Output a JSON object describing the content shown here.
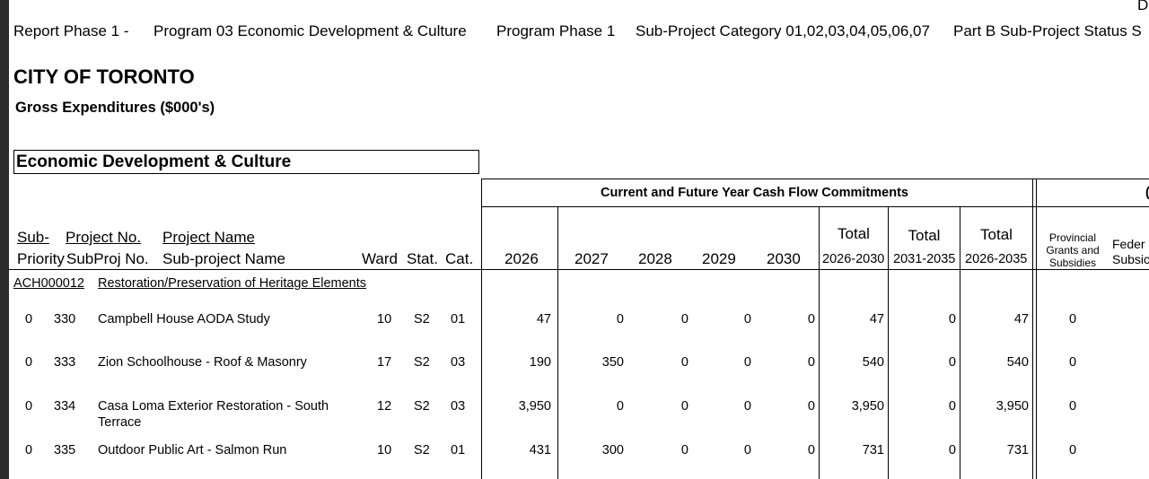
{
  "corner_char": "D",
  "header": {
    "report_phase": "Report Phase  1  -",
    "program": "Program  03  Economic Development & Culture",
    "program_phase": "Program Phase 1",
    "subproject_category": "Sub-Project Category  01,02,03,04,05,06,07",
    "part_b": "Part B Sub-Project Status S"
  },
  "title": "CITY OF TORONTO",
  "subtitle": "Gross Expenditures ($000's)",
  "section_title": "Economic Development & Culture",
  "band_label": "Current and Future Year Cash Flow Commitments",
  "band_right_fragment": "(",
  "columns": {
    "sub": "Sub-",
    "project_no": "Project No.",
    "project_name": "Project Name",
    "priority": "Priority",
    "subproj_no": "SubProj No.",
    "subproject_name": "Sub-project Name",
    "ward": "Ward",
    "stat": "Stat.",
    "cat": "Cat.",
    "y2026": "2026",
    "y2027": "2027",
    "y2028": "2028",
    "y2029": "2029",
    "y2030": "2030",
    "total_label": "Total",
    "total_2026_2030": "2026-2030",
    "total_2031_2035": "2031-2035",
    "total_2026_2035": "2026-2035",
    "provincial_line1": "Provincial",
    "provincial_line2": "Grants and",
    "provincial_line3": "Subsidies",
    "federal_line1": "Feder",
    "federal_line2": "Subsic"
  },
  "project": {
    "number": "ACH000012",
    "name": "Restoration/Preservation of Heritage Elements"
  },
  "rows": [
    {
      "priority": "0",
      "subproj": "330",
      "name": "Campbell House AODA Study",
      "name2": "",
      "ward": "10",
      "stat": "S2",
      "cat": "01",
      "y2026": "47",
      "y2027": "0",
      "y2028": "0",
      "y2029": "0",
      "y2030": "0",
      "t1": "47",
      "t2": "0",
      "t3": "47",
      "prov": "0"
    },
    {
      "priority": "0",
      "subproj": "333",
      "name": "Zion Schoolhouse - Roof & Masonry",
      "name2": "",
      "ward": "17",
      "stat": "S2",
      "cat": "03",
      "y2026": "190",
      "y2027": "350",
      "y2028": "0",
      "y2029": "0",
      "y2030": "0",
      "t1": "540",
      "t2": "0",
      "t3": "540",
      "prov": "0"
    },
    {
      "priority": "0",
      "subproj": "334",
      "name": "Casa Loma Exterior Restoration - South",
      "name2": "Terrace",
      "ward": "12",
      "stat": "S2",
      "cat": "03",
      "y2026": "3,950",
      "y2027": "0",
      "y2028": "0",
      "y2029": "0",
      "y2030": "0",
      "t1": "3,950",
      "t2": "0",
      "t3": "3,950",
      "prov": "0"
    },
    {
      "priority": "0",
      "subproj": "335",
      "name": "Outdoor Public Art - Salmon Run",
      "name2": "",
      "ward": "10",
      "stat": "S2",
      "cat": "01",
      "y2026": "431",
      "y2027": "300",
      "y2028": "0",
      "y2029": "0",
      "y2030": "0",
      "t1": "731",
      "t2": "0",
      "t3": "731",
      "prov": "0"
    }
  ]
}
